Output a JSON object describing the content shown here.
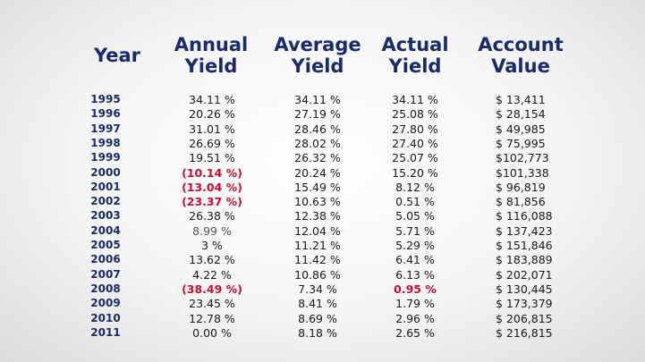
{
  "headers": {
    "year": "Year",
    "annual": [
      "Annual",
      "Yield"
    ],
    "average": [
      "Average",
      "Yield"
    ],
    "actual": [
      "Actual",
      "Yield"
    ],
    "value": [
      "Account",
      "Value"
    ]
  },
  "rows": [
    {
      "year": "1995",
      "annual": "34.11 %",
      "average": "34.11 %",
      "actual": "34.11 %",
      "value": "$ 13,411"
    },
    {
      "year": "1996",
      "annual": "20.26 %",
      "average": "27.19 %",
      "actual": "25.08 %",
      "value": "$ 28,154"
    },
    {
      "year": "1997",
      "annual": "31.01 %",
      "average": "28.46 %",
      "actual": "27.80 %",
      "value": "$ 49,985"
    },
    {
      "year": "1998",
      "annual": "26.69 %",
      "average": "28.02 %",
      "actual": "27.40 %",
      "value": "$ 75,995"
    },
    {
      "year": "1999",
      "annual": "19.51 %",
      "average": "26.32 %",
      "actual": "25.07 %",
      "value": "$102,773"
    },
    {
      "year": "2000",
      "annual": "(10.14 %)",
      "average": "20.24 %",
      "actual": "15.20 %",
      "value": "$101,338"
    },
    {
      "year": "2001",
      "annual": "(13.04 %)",
      "average": "15.49 %",
      "actual": "8.12 %",
      "value": "$ 96,819"
    },
    {
      "year": "2002",
      "annual": "(23.37 %)",
      "average": "10.63 %",
      "actual": "0.51 %",
      "value": "$ 81,856"
    },
    {
      "year": "2003",
      "annual": "26.38 %",
      "average": "12.38 %",
      "actual": "5.05 %",
      "value": "$ 116,088"
    },
    {
      "year": "2004",
      "annual": "8.99 %",
      "average": "12.04 %",
      "actual": "5.71 %",
      "value": "$ 137,423"
    },
    {
      "year": "2005",
      "annual": "3 %",
      "average": "11.21 %",
      "actual": "5.29 %",
      "value": "$ 151,846"
    },
    {
      "year": "2006",
      "annual": "13.62 %",
      "average": "11.42 %",
      "actual": "6.41 %",
      "value": "$ 183,889"
    },
    {
      "year": "2007",
      "annual": "4.22 %",
      "average": "10.86 %",
      "actual": "6.13 %",
      "value": "$ 202,071"
    },
    {
      "year": "2008",
      "annual": "(38.49 %)",
      "average": "7.34 %",
      "actual": "0.95 %",
      "value": "$ 130,445"
    },
    {
      "year": "2009",
      "annual": "23.45 %",
      "average": "8.41 %",
      "actual": "1.79 %",
      "value": "$ 173,379"
    },
    {
      "year": "2010",
      "annual": "12.78 %",
      "average": "8.69 %",
      "actual": "2.96 %",
      "value": "$ 206,815"
    },
    {
      "year": "2011",
      "annual": "0.00 %",
      "average": "8.18 %",
      "actual": "2.65 %",
      "value": "$ 216,815"
    }
  ],
  "highlights": {
    "negative_color": "#c8102e",
    "header_color": "#1b2a6b",
    "red_annual_years": [
      "2000",
      "2001",
      "2002",
      "2008"
    ],
    "red_actual_years": [
      "2008"
    ],
    "gray_annual_years": [
      "2004"
    ]
  }
}
